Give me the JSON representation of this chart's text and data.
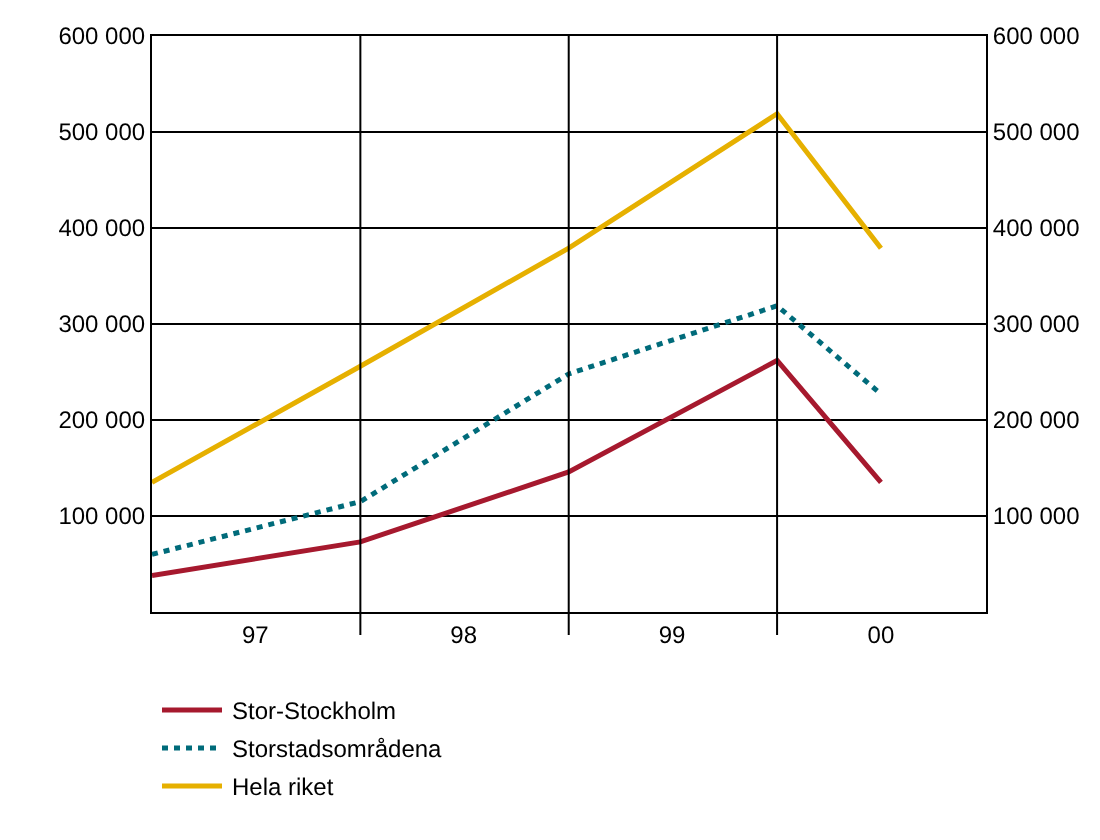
{
  "chart_data": {
    "type": "line",
    "x": [
      "1997-01-01",
      "1998-01-01",
      "1999-01-01",
      "2000-01-01",
      "2000-07-01"
    ],
    "xlim": [
      "1997-01-01",
      "2001-01-01"
    ],
    "xticks": [
      {
        "value": "1997-07-01",
        "label": "97"
      },
      {
        "value": "1998-07-01",
        "label": "98"
      },
      {
        "value": "1999-07-01",
        "label": "99"
      },
      {
        "value": "2000-07-01",
        "label": "00"
      }
    ],
    "ylim": [
      0,
      600000
    ],
    "yticks": [
      {
        "value": 100000,
        "label": "100 000"
      },
      {
        "value": 200000,
        "label": "200 000"
      },
      {
        "value": 300000,
        "label": "300 000"
      },
      {
        "value": 400000,
        "label": "400 000"
      },
      {
        "value": 500000,
        "label": "500 000"
      },
      {
        "value": 600000,
        "label": "600 000"
      }
    ],
    "y2lim": [
      0,
      600000
    ],
    "y2ticks": [
      {
        "value": 100000,
        "label": "100 000"
      },
      {
        "value": 200000,
        "label": "200 000"
      },
      {
        "value": 300000,
        "label": "300 000"
      },
      {
        "value": 400000,
        "label": "400 000"
      },
      {
        "value": 500000,
        "label": "500 000"
      },
      {
        "value": 600000,
        "label": "600 000"
      }
    ],
    "ref_lines": [
      {
        "axis": "x",
        "value": "1998-01-01",
        "color": "#000000"
      },
      {
        "axis": "x",
        "value": "1999-01-01",
        "color": "#000000"
      },
      {
        "axis": "x",
        "value": "2000-01-01",
        "color": "#000000"
      }
    ],
    "series": [
      {
        "name": "Stor-Stockholm",
        "color": "#a6192e",
        "line_style": "solid",
        "values": [
          38000,
          73000,
          146000,
          262000,
          135000
        ]
      },
      {
        "name": "Storstadsområdena",
        "color": "#006b7a",
        "line_style": "dotted",
        "values": [
          60000,
          115000,
          248000,
          319000,
          227000
        ]
      },
      {
        "name": "Hela riket",
        "color": "#e6b000",
        "line_style": "solid",
        "values": [
          135000,
          256000,
          379000,
          519000,
          379000
        ]
      }
    ],
    "grid": "y",
    "legend": "bottom left",
    "marker": "none"
  }
}
